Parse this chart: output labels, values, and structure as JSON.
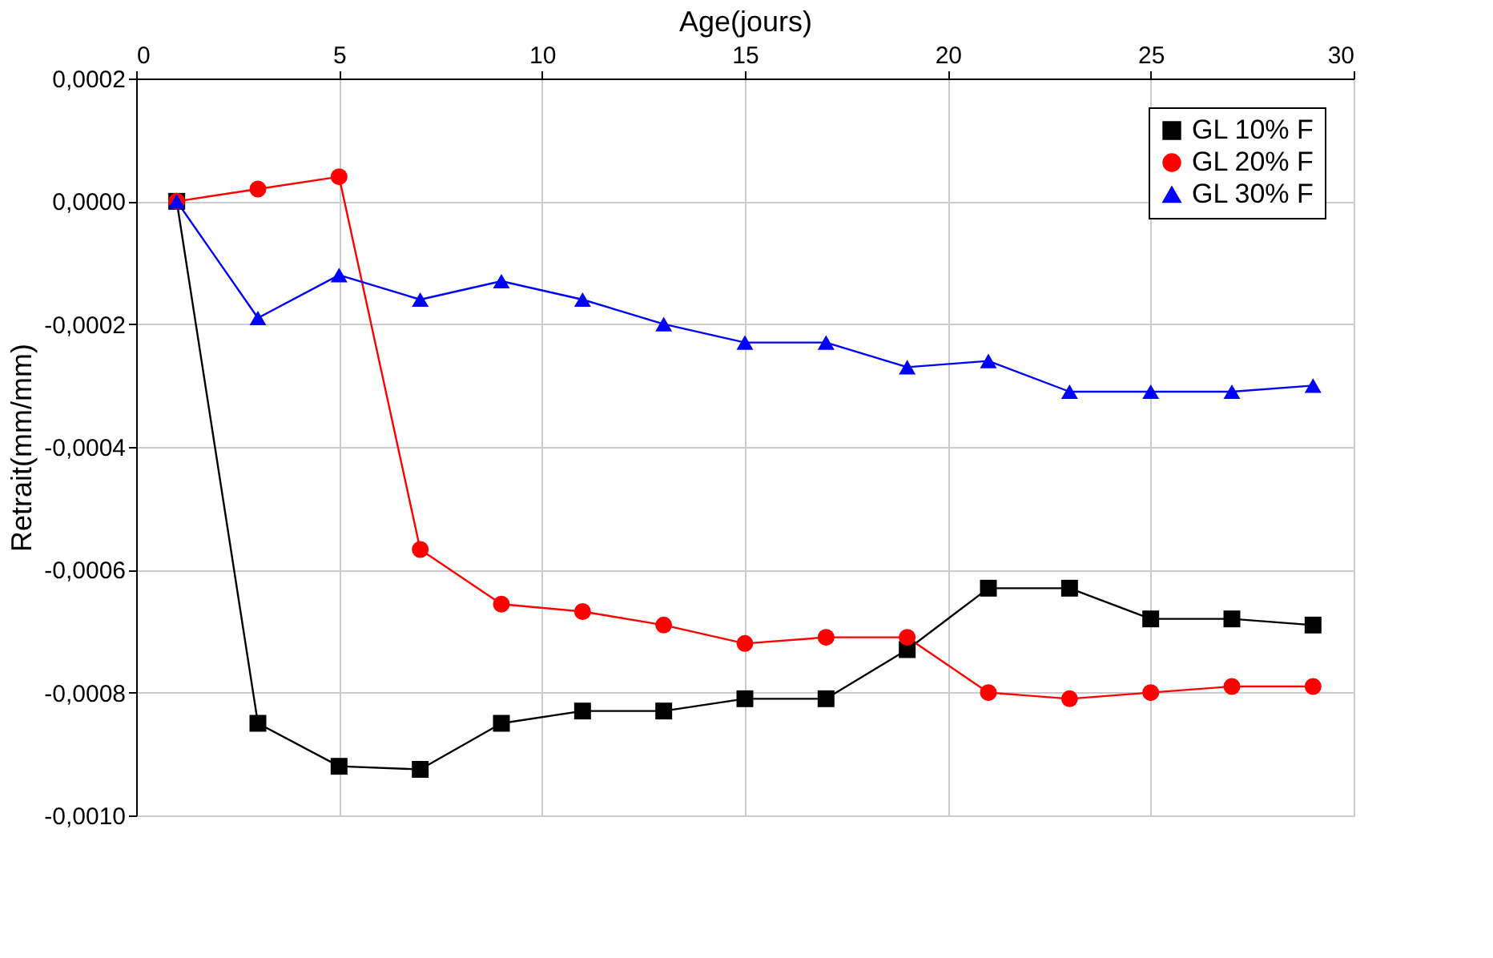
{
  "chart_data": {
    "type": "line",
    "xlabel": "Age(jours)",
    "ylabel": "Retrait(mm/mm)",
    "x": [
      1,
      3,
      5,
      7,
      9,
      11,
      13,
      15,
      17,
      19,
      21,
      23,
      25,
      27,
      29
    ],
    "xlim": [
      0,
      30
    ],
    "xticks": [
      0,
      5,
      10,
      15,
      20,
      25,
      30
    ],
    "ylim": [
      -0.001,
      0.0002
    ],
    "yticks": [
      {
        "value": 0.0002,
        "label": "0,0002"
      },
      {
        "value": 0,
        "label": "0,0000"
      },
      {
        "value": -0.0002,
        "label": "-0,0002"
      },
      {
        "value": -0.0004,
        "label": "-0,0004"
      },
      {
        "value": -0.0006,
        "label": "-0,0006"
      },
      {
        "value": -0.0008,
        "label": "-0,0008"
      },
      {
        "value": -0.001,
        "label": "-0,0010"
      }
    ],
    "grid": true,
    "legend": "top right",
    "line_style": "solid",
    "series": [
      {
        "name": "GL 10% F",
        "color": "#000000",
        "marker": "square",
        "values": [
          0,
          -0.00085,
          -0.00092,
          -0.000925,
          -0.00085,
          -0.00083,
          -0.00083,
          -0.00081,
          -0.00081,
          -0.00073,
          -0.00063,
          -0.00063,
          -0.00068,
          -0.00068,
          -0.00069
        ]
      },
      {
        "name": "GL 20% F",
        "color": "#ff0000",
        "marker": "circle",
        "values": [
          0,
          2e-05,
          4e-05,
          -0.000567,
          -0.000656,
          -0.000668,
          -0.00069,
          -0.00072,
          -0.00071,
          -0.00071,
          -0.0008,
          -0.00081,
          -0.0008,
          -0.00079,
          -0.00079
        ]
      },
      {
        "name": "GL 30% F",
        "color": "#0000ff",
        "marker": "triangle",
        "values": [
          0,
          -0.00019,
          -0.00012,
          -0.00016,
          -0.00013,
          -0.00016,
          -0.0002,
          -0.00023,
          -0.00023,
          -0.00027,
          -0.00026,
          -0.00031,
          -0.00031,
          -0.00031,
          -0.0003
        ]
      }
    ]
  }
}
